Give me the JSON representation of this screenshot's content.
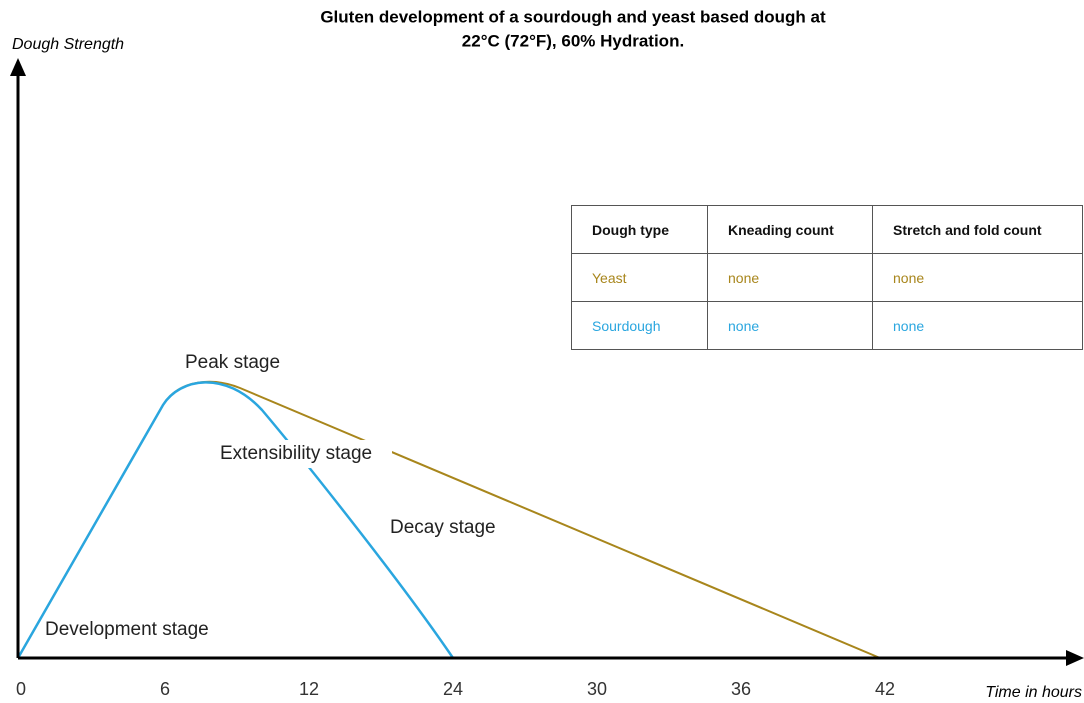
{
  "title_lines": [
    "Gluten development of a sourdough and yeast based dough at",
    "22°C (72°F), 60% Hydration."
  ],
  "y_axis_label": "Dough Strength",
  "x_axis_label": "Time in hours",
  "x_ticks": [
    "0",
    "6",
    "12",
    "24",
    "30",
    "36",
    "42"
  ],
  "annotations": {
    "peak": "Peak stage",
    "extensibility": "Extensibility stage",
    "decay": "Decay stage",
    "development": "Development stage"
  },
  "table": {
    "header": [
      "Dough type",
      "Kneading count",
      "Stretch and fold count"
    ],
    "rows": [
      [
        "Yeast",
        "none",
        "none"
      ],
      [
        "Sourdough",
        "none",
        "none"
      ]
    ]
  }
}
